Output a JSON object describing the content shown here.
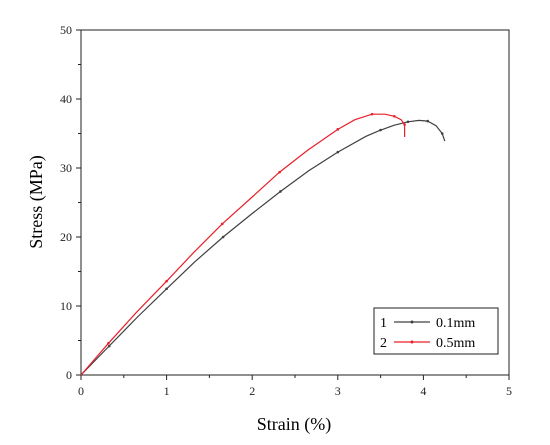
{
  "chart_data": {
    "type": "line",
    "title": "",
    "xlabel": "Strain (%)",
    "ylabel": "Stress (MPa)",
    "xlim": [
      0,
      5
    ],
    "ylim": [
      0,
      50
    ],
    "x_ticks": [
      "0",
      "1",
      "2",
      "3",
      "4",
      "5"
    ],
    "y_ticks": [
      "0",
      "10",
      "20",
      "30",
      "40",
      "50"
    ],
    "grid": false,
    "legend_position": "bottom-right",
    "series": [
      {
        "id": "1",
        "name": "0.1mm",
        "color": "#404040",
        "points": [
          [
            0,
            0
          ],
          [
            0.33,
            4.2
          ],
          [
            0.66,
            8.4
          ],
          [
            1.0,
            12.5
          ],
          [
            1.33,
            16.4
          ],
          [
            1.66,
            20.0
          ],
          [
            2.0,
            23.4
          ],
          [
            2.33,
            26.6
          ],
          [
            2.66,
            29.6
          ],
          [
            3.0,
            32.3
          ],
          [
            3.33,
            34.6
          ],
          [
            3.5,
            35.5
          ],
          [
            3.66,
            36.2
          ],
          [
            3.82,
            36.7
          ],
          [
            3.95,
            36.9
          ],
          [
            4.05,
            36.8
          ],
          [
            4.15,
            36.1
          ],
          [
            4.22,
            35.0
          ],
          [
            4.25,
            33.9
          ]
        ]
      },
      {
        "id": "2",
        "name": "0.5mm",
        "color": "#e8202a",
        "points": [
          [
            0,
            0
          ],
          [
            0.32,
            4.6
          ],
          [
            0.65,
            9.1
          ],
          [
            1.0,
            13.6
          ],
          [
            1.32,
            17.8
          ],
          [
            1.65,
            21.9
          ],
          [
            2.0,
            25.8
          ],
          [
            2.32,
            29.4
          ],
          [
            2.65,
            32.6
          ],
          [
            3.0,
            35.6
          ],
          [
            3.2,
            37.0
          ],
          [
            3.4,
            37.8
          ],
          [
            3.55,
            37.8
          ],
          [
            3.66,
            37.5
          ],
          [
            3.74,
            37.0
          ],
          [
            3.78,
            36.3
          ],
          [
            3.78,
            34.5
          ]
        ]
      }
    ]
  }
}
